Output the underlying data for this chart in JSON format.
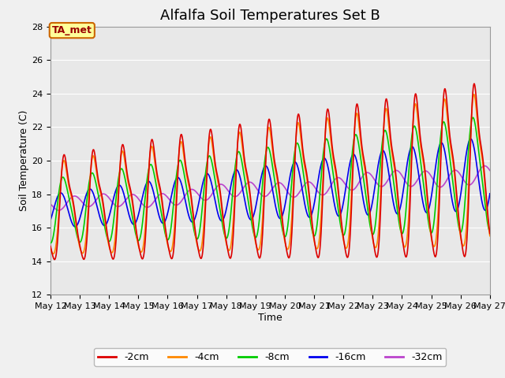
{
  "title": "Alfalfa Soil Temperatures Set B",
  "xlabel": "Time",
  "ylabel": "Soil Temperature (C)",
  "ylim": [
    12,
    28
  ],
  "xlim_start": 12,
  "xlim_end": 27,
  "fig_bg_color": "#f0f0f0",
  "ax_bg_color": "#e8e8e8",
  "annotation_text": "TA_met",
  "annotation_bg": "#ffff99",
  "annotation_border": "#cc6600",
  "annotation_text_color": "#990000",
  "series_colors": {
    "-2cm": "#dd0000",
    "-4cm": "#ff8800",
    "-8cm": "#00cc00",
    "-16cm": "#0000ee",
    "-32cm": "#bb44cc"
  },
  "legend_labels": [
    "-2cm",
    "-4cm",
    "-8cm",
    "-16cm",
    "-32cm"
  ],
  "xtick_labels": [
    "May 12",
    "May 13",
    "May 14",
    "May 15",
    "May 16",
    "May 17",
    "May 18",
    "May 19",
    "May 20",
    "May 21",
    "May 22",
    "May 23",
    "May 24",
    "May 25",
    "May 26",
    "May 27"
  ],
  "yticks": [
    12,
    14,
    16,
    18,
    20,
    22,
    24,
    26,
    28
  ],
  "grid_color": "#ffffff",
  "title_fontsize": 13,
  "axis_label_fontsize": 9,
  "tick_fontsize": 8,
  "legend_fontsize": 9,
  "line_width": 1.2
}
